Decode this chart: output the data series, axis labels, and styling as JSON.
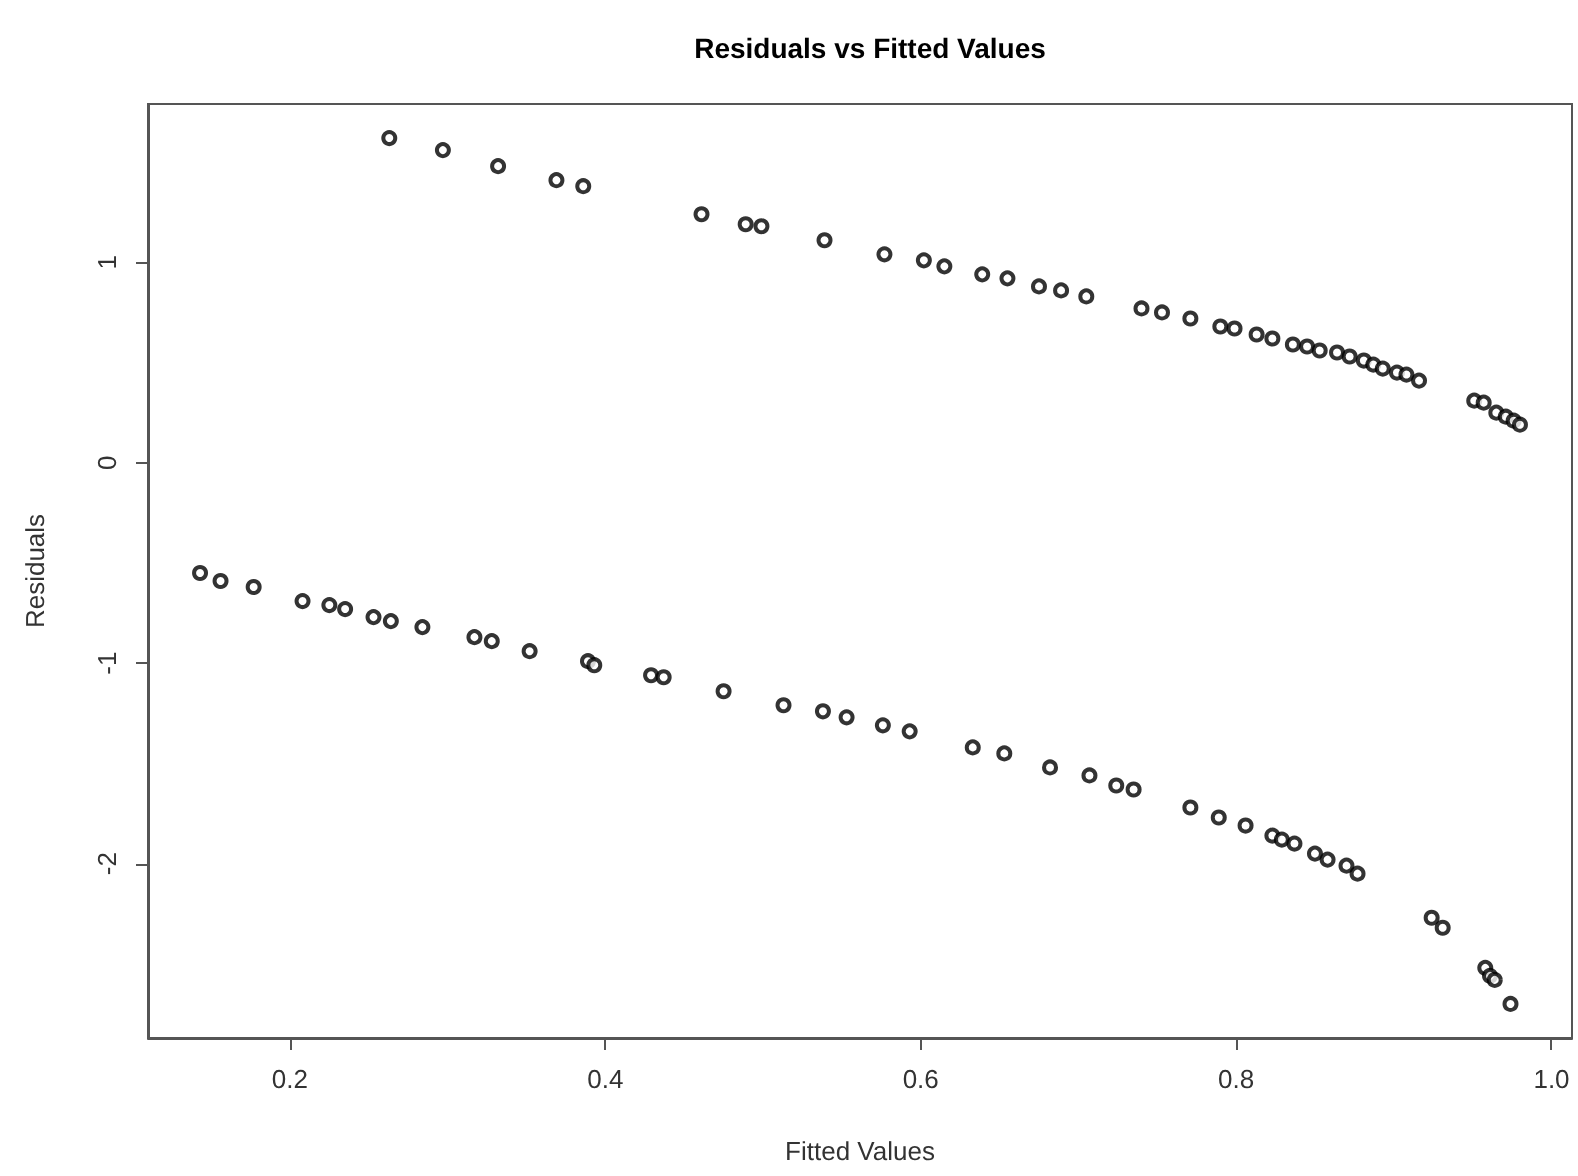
{
  "chart_data": {
    "type": "scatter",
    "title": "Residuals vs Fitted Values",
    "xlabel": "Fitted Values",
    "ylabel": "Residuals",
    "x": [
      0.263,
      0.297,
      0.332,
      0.369,
      0.386,
      0.461,
      0.489,
      0.499,
      0.539,
      0.577,
      0.602,
      0.615,
      0.639,
      0.655,
      0.675,
      0.689,
      0.705,
      0.74,
      0.753,
      0.771,
      0.79,
      0.799,
      0.813,
      0.823,
      0.836,
      0.845,
      0.853,
      0.864,
      0.872,
      0.881,
      0.887,
      0.893,
      0.902,
      0.908,
      0.916,
      0.951,
      0.957,
      0.965,
      0.971,
      0.976,
      0.98,
      0.143,
      0.156,
      0.177,
      0.208,
      0.225,
      0.235,
      0.253,
      0.264,
      0.284,
      0.317,
      0.328,
      0.352,
      0.389,
      0.393,
      0.429,
      0.437,
      0.475,
      0.513,
      0.538,
      0.553,
      0.576,
      0.593,
      0.633,
      0.653,
      0.682,
      0.707,
      0.724,
      0.735,
      0.771,
      0.789,
      0.806,
      0.823,
      0.829,
      0.837,
      0.85,
      0.858,
      0.87,
      0.877,
      0.924,
      0.931,
      0.958,
      0.961,
      0.964,
      0.974
    ],
    "series": [
      {
        "color": "#000000",
        "values": [
          1.62,
          1.56,
          1.48,
          1.41,
          1.38,
          1.24,
          1.19,
          1.18,
          1.11,
          1.04,
          1.01,
          0.98,
          0.94,
          0.92,
          0.88,
          0.86,
          0.83,
          0.77,
          0.75,
          0.72,
          0.68,
          0.67,
          0.64,
          0.62,
          0.59,
          0.58,
          0.56,
          0.55,
          0.53,
          0.51,
          0.49,
          0.47,
          0.45,
          0.44,
          0.41,
          0.31,
          0.3,
          0.25,
          0.23,
          0.21,
          0.19,
          -0.55,
          -0.59,
          -0.62,
          -0.69,
          -0.71,
          -0.73,
          -0.77,
          -0.79,
          -0.82,
          -0.87,
          -0.89,
          -0.94,
          -0.99,
          -1.01,
          -1.06,
          -1.07,
          -1.14,
          -1.21,
          -1.24,
          -1.27,
          -1.31,
          -1.34,
          -1.42,
          -1.45,
          -1.52,
          -1.56,
          -1.61,
          -1.63,
          -1.72,
          -1.77,
          -1.81,
          -1.86,
          -1.88,
          -1.9,
          -1.95,
          -1.98,
          -2.01,
          -2.05,
          -2.27,
          -2.32,
          -2.52,
          -2.56,
          -2.58,
          -2.7
        ]
      }
    ],
    "xlim": [
      0.11,
      1.013
    ],
    "ylim": [
      -2.87,
      1.79
    ],
    "xticks": [
      0.2,
      0.4,
      0.6,
      0.8,
      {
        "value": 1,
        "label": "1.0"
      }
    ],
    "yticks": [
      -2,
      -1,
      0,
      1
    ],
    "grid": false,
    "marker": "circle"
  }
}
